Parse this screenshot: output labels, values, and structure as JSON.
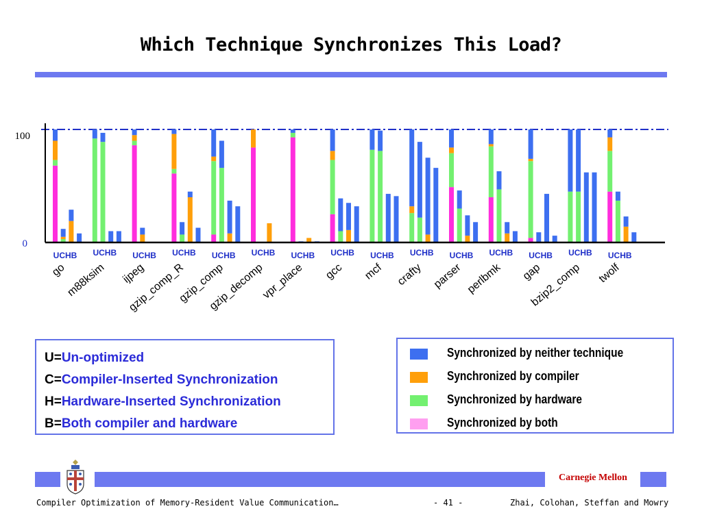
{
  "slide": {
    "title": "Which Technique Synchronizes This Load?",
    "footer_title": "Compiler Optimization of Memory-Resident Value Communication…",
    "page_number": "- 41 -",
    "authors": "Zhai, Colohan, Steffan and Mowry",
    "affiliation": "Carnegie Mellon"
  },
  "abbreviations": [
    {
      "key": "U=",
      "value": "Un-optimized"
    },
    {
      "key": "C=",
      "value": "Compiler-Inserted Synchronization"
    },
    {
      "key": "H=",
      "value": "Hardware-Inserted Synchronization"
    },
    {
      "key": "B=",
      "value": "Both compiler and hardware"
    }
  ],
  "colors": {
    "neither": "#3d6ff0",
    "compiler": "#ff9f0a",
    "hardware": "#73f070",
    "both": "#ff2ddd",
    "accent": "#6d79f0",
    "reference_line": "#1f2fc8",
    "axis": "#000000",
    "bench_label_color": "#000000",
    "config_label_color": "#1f2fc8"
  },
  "chart_data": {
    "type": "bar",
    "stacked": true,
    "title": "",
    "xlabel": "",
    "ylabel": "",
    "ylim": [
      0,
      100
    ],
    "y_ticks": [
      "0",
      "100"
    ],
    "reference_line": 100,
    "config_labels": [
      "U",
      "C",
      "H",
      "B"
    ],
    "config_label_text": "UCHB",
    "series": [
      {
        "name": "Synchronized by neither technique",
        "key": "neither"
      },
      {
        "name": "Synchronized by compiler",
        "key": "compiler"
      },
      {
        "name": "Synchronized by hardware",
        "key": "hardware"
      },
      {
        "name": "Synchronized by both",
        "key": "both"
      }
    ],
    "legend_position": "bottom-right",
    "benchmarks": [
      {
        "name": "go",
        "bars": [
          {
            "both": 68,
            "hardware": 5,
            "compiler": 17,
            "neither": 10
          },
          {
            "both": 0,
            "hardware": 3,
            "compiler": 2,
            "neither": 7
          },
          {
            "both": 0,
            "hardware": 0,
            "compiler": 19,
            "neither": 10
          },
          {
            "both": 0,
            "hardware": 0,
            "compiler": 0,
            "neither": 8
          }
        ]
      },
      {
        "name": "m88ksim",
        "bars": [
          {
            "both": 0,
            "hardware": 92,
            "compiler": 0,
            "neither": 8
          },
          {
            "both": 0,
            "hardware": 89,
            "compiler": 0,
            "neither": 8
          },
          {
            "both": 0,
            "hardware": 0,
            "compiler": 0,
            "neither": 10
          },
          {
            "both": 0,
            "hardware": 0,
            "compiler": 0,
            "neither": 10
          }
        ]
      },
      {
        "name": "ijpeg",
        "bars": [
          {
            "both": 86,
            "hardware": 4,
            "compiler": 5,
            "neither": 5
          },
          {
            "both": 0,
            "hardware": 0,
            "compiler": 7,
            "neither": 6
          },
          {
            "both": 0,
            "hardware": 0,
            "compiler": 0,
            "neither": 0
          },
          {
            "both": 0,
            "hardware": 0,
            "compiler": 0,
            "neither": 0
          }
        ]
      },
      {
        "name": "gzip_comp_R",
        "bars": [
          {
            "both": 61,
            "hardware": 4,
            "compiler": 31,
            "neither": 4
          },
          {
            "both": 0,
            "hardware": 7,
            "compiler": 0,
            "neither": 11
          },
          {
            "both": 0,
            "hardware": 0,
            "compiler": 40,
            "neither": 5
          },
          {
            "both": 0,
            "hardware": 0,
            "compiler": 0,
            "neither": 13
          }
        ]
      },
      {
        "name": "gzip_comp",
        "bars": [
          {
            "both": 7,
            "hardware": 65,
            "compiler": 4,
            "neither": 24
          },
          {
            "both": 0,
            "hardware": 66,
            "compiler": 0,
            "neither": 24
          },
          {
            "both": 0,
            "hardware": 0,
            "compiler": 8,
            "neither": 29
          },
          {
            "both": 0,
            "hardware": 0,
            "compiler": 0,
            "neither": 32
          }
        ]
      },
      {
        "name": "gzip_decomp",
        "bars": [
          {
            "both": 84,
            "hardware": 0,
            "compiler": 16,
            "neither": 0
          },
          {
            "both": 0,
            "hardware": 0,
            "compiler": 0,
            "neither": 0
          },
          {
            "both": 0,
            "hardware": 0,
            "compiler": 17,
            "neither": 0
          },
          {
            "both": 0,
            "hardware": 0,
            "compiler": 0,
            "neither": 0
          }
        ]
      },
      {
        "name": "vpr_place",
        "bars": [
          {
            "both": 93,
            "hardware": 4,
            "compiler": 0,
            "neither": 3
          },
          {
            "both": 0,
            "hardware": 0,
            "compiler": 0,
            "neither": 1
          },
          {
            "both": 0,
            "hardware": 0,
            "compiler": 4,
            "neither": 0
          },
          {
            "both": 0,
            "hardware": 0,
            "compiler": 0,
            "neither": 1
          }
        ]
      },
      {
        "name": "gcc",
        "bars": [
          {
            "both": 25,
            "hardware": 48,
            "compiler": 8,
            "neither": 19
          },
          {
            "both": 0,
            "hardware": 10,
            "compiler": 0,
            "neither": 29
          },
          {
            "both": 0,
            "hardware": 0,
            "compiler": 11,
            "neither": 24
          },
          {
            "both": 0,
            "hardware": 0,
            "compiler": 0,
            "neither": 32
          }
        ]
      },
      {
        "name": "mcf",
        "bars": [
          {
            "both": 0,
            "hardware": 82,
            "compiler": 0,
            "neither": 18
          },
          {
            "both": 0,
            "hardware": 81,
            "compiler": 0,
            "neither": 18
          },
          {
            "both": 0,
            "hardware": 0,
            "compiler": 0,
            "neither": 43
          },
          {
            "both": 0,
            "hardware": 0,
            "compiler": 0,
            "neither": 41
          }
        ]
      },
      {
        "name": "crafty",
        "bars": [
          {
            "both": 0,
            "hardware": 26,
            "compiler": 6,
            "neither": 68
          },
          {
            "both": 0,
            "hardware": 22,
            "compiler": 0,
            "neither": 67
          },
          {
            "both": 0,
            "hardware": 0,
            "compiler": 7,
            "neither": 68
          },
          {
            "both": 0,
            "hardware": 0,
            "compiler": 0,
            "neither": 66
          }
        ]
      },
      {
        "name": "parser",
        "bars": [
          {
            "both": 49,
            "hardware": 30,
            "compiler": 5,
            "neither": 16
          },
          {
            "both": 0,
            "hardware": 30,
            "compiler": 0,
            "neither": 16
          },
          {
            "both": 0,
            "hardware": 0,
            "compiler": 6,
            "neither": 18
          },
          {
            "both": 0,
            "hardware": 0,
            "compiler": 0,
            "neither": 18
          }
        ]
      },
      {
        "name": "perlbmk",
        "bars": [
          {
            "both": 40,
            "hardware": 45,
            "compiler": 2,
            "neither": 13
          },
          {
            "both": 0,
            "hardware": 47,
            "compiler": 0,
            "neither": 16
          },
          {
            "both": 0,
            "hardware": 0,
            "compiler": 8,
            "neither": 10
          },
          {
            "both": 0,
            "hardware": 0,
            "compiler": 0,
            "neither": 10
          }
        ]
      },
      {
        "name": "gap",
        "bars": [
          {
            "both": 4,
            "hardware": 68,
            "compiler": 2,
            "neither": 26
          },
          {
            "both": 0,
            "hardware": 0,
            "compiler": 0,
            "neither": 9
          },
          {
            "both": 0,
            "hardware": 0,
            "compiler": 0,
            "neither": 43
          },
          {
            "both": 0,
            "hardware": 0,
            "compiler": 0,
            "neither": 6
          }
        ]
      },
      {
        "name": "bzip2_comp",
        "bars": [
          {
            "both": 0,
            "hardware": 45,
            "compiler": 0,
            "neither": 55
          },
          {
            "both": 0,
            "hardware": 45,
            "compiler": 0,
            "neither": 55
          },
          {
            "both": 0,
            "hardware": 0,
            "compiler": 0,
            "neither": 62
          },
          {
            "both": 0,
            "hardware": 0,
            "compiler": 0,
            "neither": 62
          }
        ]
      },
      {
        "name": "twolf",
        "bars": [
          {
            "both": 45,
            "hardware": 36,
            "compiler": 12,
            "neither": 7
          },
          {
            "both": 0,
            "hardware": 37,
            "compiler": 0,
            "neither": 8
          },
          {
            "both": 0,
            "hardware": 0,
            "compiler": 14,
            "neither": 9
          },
          {
            "both": 0,
            "hardware": 0,
            "compiler": 0,
            "neither": 9
          }
        ]
      }
    ]
  }
}
